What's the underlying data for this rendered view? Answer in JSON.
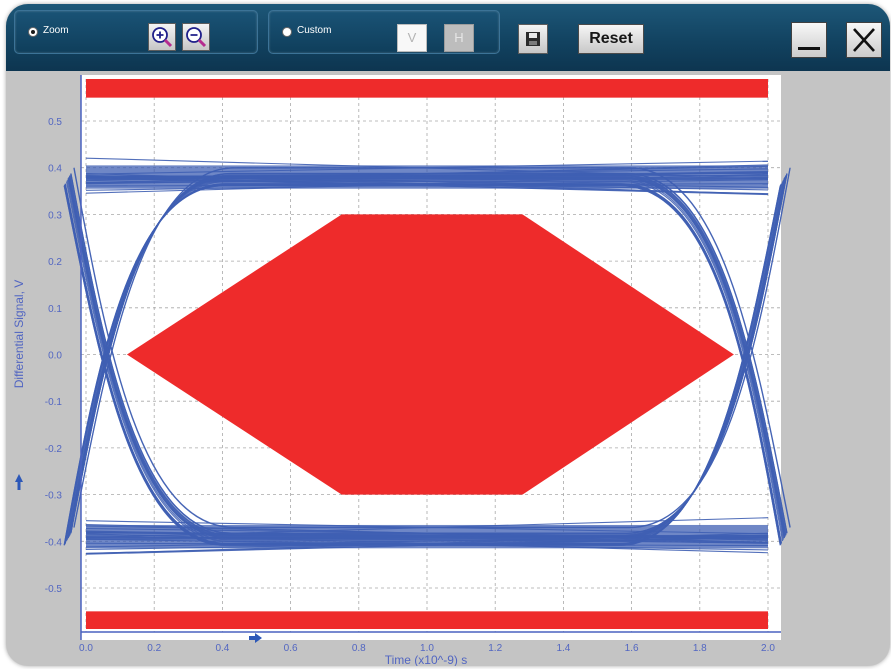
{
  "toolbar": {
    "zoom_label": "Zoom",
    "custom_label": "Custom",
    "v_label": "V",
    "h_label": "H",
    "reset_label": "Reset",
    "zoom_selected": true
  },
  "chart_data": {
    "type": "line",
    "xlabel": "Time  (x10^-9) s",
    "ylabel": "Differential Signal, V",
    "xlim": [
      0.0,
      2.0
    ],
    "ylim": [
      -0.55,
      0.55
    ],
    "x_ticks": [
      "0.0",
      "0.2",
      "0.4",
      "0.6",
      "0.8",
      "1.0",
      "1.2",
      "1.4",
      "1.6",
      "1.8",
      "2.0"
    ],
    "y_ticks": [
      "0.5",
      "0.4",
      "0.3",
      "0.2",
      "0.1",
      "0.0",
      "-0.1",
      "-0.2",
      "-0.3",
      "-0.4",
      "-0.5"
    ],
    "grid": true,
    "mask": {
      "center_polygon": [
        [
          0.12,
          0.0
        ],
        [
          0.75,
          0.3
        ],
        [
          1.28,
          0.3
        ],
        [
          1.9,
          0.0
        ],
        [
          1.28,
          -0.3
        ],
        [
          0.75,
          -0.3
        ]
      ],
      "top_band": [
        0.55,
        1.0
      ],
      "bottom_band": [
        -1.0,
        -0.55
      ]
    },
    "eye": {
      "high_level": 0.38,
      "low_level": -0.39,
      "crossings": [
        0.0,
        2.0
      ]
    },
    "colors": {
      "trace": "#3f5fb3",
      "mask": "#ee2b2b",
      "grid": "#a8a8a8",
      "axis_text": "#5266c2"
    }
  }
}
